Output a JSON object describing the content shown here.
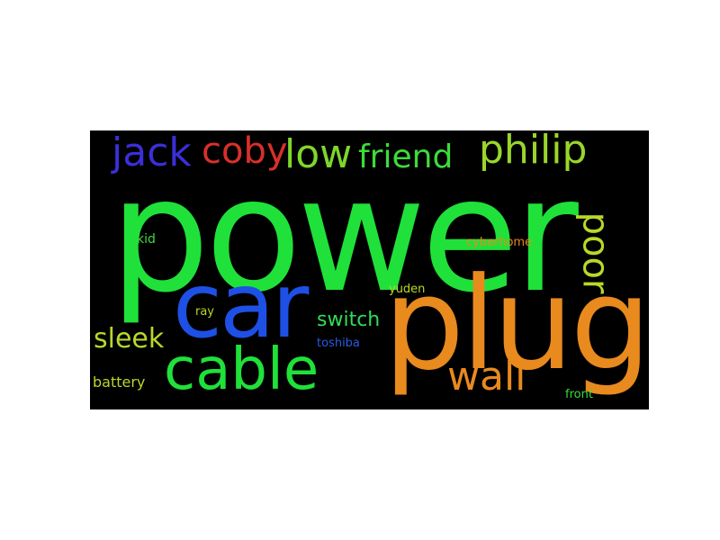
{
  "words": [
    {
      "text": "power",
      "color": "#1fe13a"
    },
    {
      "text": "plug",
      "color": "#e88a1e"
    },
    {
      "text": "car",
      "color": "#1e50e6"
    },
    {
      "text": "cable",
      "color": "#1fe13a"
    },
    {
      "text": "jack",
      "color": "#3a2fd8"
    },
    {
      "text": "coby",
      "color": "#d8302a"
    },
    {
      "text": "low",
      "color": "#7fd62a"
    },
    {
      "text": "friend",
      "color": "#3ddb3a"
    },
    {
      "text": "philip",
      "color": "#9ad62a"
    },
    {
      "text": "poor",
      "color": "#b8d82a"
    },
    {
      "text": "wall",
      "color": "#e88a1e"
    },
    {
      "text": "sleek",
      "color": "#b8d82a"
    },
    {
      "text": "switch",
      "color": "#2fdc5a"
    },
    {
      "text": "battery",
      "color": "#b8d82a"
    },
    {
      "text": "kid",
      "color": "#3ddb3a"
    },
    {
      "text": "ray",
      "color": "#b8d82a"
    },
    {
      "text": "yuden",
      "color": "#b8d82a"
    },
    {
      "text": "cyberhome",
      "color": "#e88a1e"
    },
    {
      "text": "toshiba",
      "color": "#2a5ae0"
    },
    {
      "text": "front",
      "color": "#3ddb3a"
    }
  ]
}
